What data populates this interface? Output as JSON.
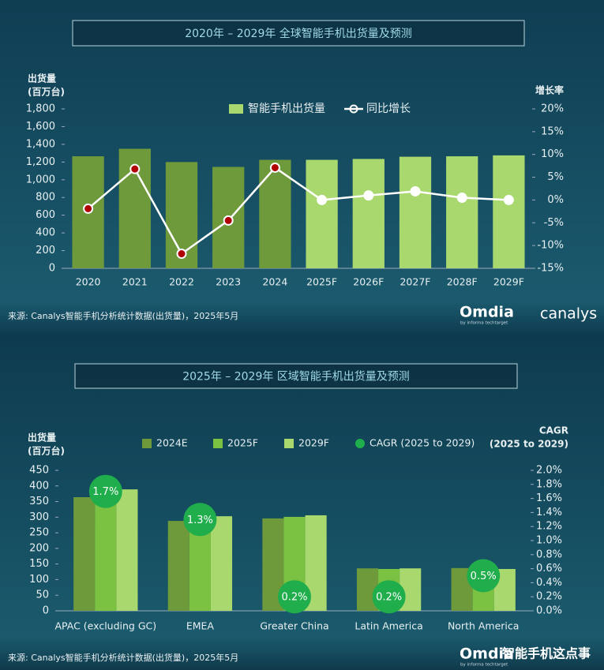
{
  "chart_data": [
    {
      "type": "bar",
      "title": "2020年 – 2029年 全球智能手机出货量及预测",
      "y_label": [
        "出货量",
        "(百万台)"
      ],
      "y2_label": "增长率",
      "categories": [
        "2020",
        "2021",
        "2022",
        "2023",
        "2024",
        "2025F",
        "2026F",
        "2027F",
        "2028F",
        "2029F"
      ],
      "series": [
        {
          "name": "智能手机出货量",
          "type": "bar",
          "color": "#a8d86e",
          "colors": [
            "#6e9a3c",
            "#6e9a3c",
            "#6e9a3c",
            "#6e9a3c",
            "#6e9a3c",
            "#a8d86e",
            "#a8d86e",
            "#a8d86e",
            "#a8d86e",
            "#a8d86e"
          ],
          "values": [
            1265,
            1350,
            1200,
            1145,
            1225,
            1225,
            1235,
            1260,
            1265,
            1275
          ]
        },
        {
          "name": "同比增长",
          "type": "line",
          "axis": "y2",
          "color": "#ffffff",
          "marker_colors": [
            "#b00000",
            "#b00000",
            "#b00000",
            "#b00000",
            "#b00000",
            "#ffffff",
            "#ffffff",
            "#ffffff",
            "#ffffff",
            "#ffffff"
          ],
          "values": [
            -1.9,
            6.8,
            -11.8,
            -4.5,
            7.1,
            0,
            1.0,
            1.9,
            0.5,
            0
          ]
        }
      ],
      "ylim": [
        0,
        1800
      ],
      "yticks": [
        0,
        200,
        400,
        600,
        800,
        {
          "value": 1000,
          "label": "1,000"
        },
        {
          "value": 1200,
          "label": "1,200"
        },
        {
          "value": 1400,
          "label": "1,400"
        },
        {
          "value": 1600,
          "label": "1,600"
        },
        {
          "value": 1800,
          "label": "1,800"
        }
      ],
      "y2lim": [
        -15,
        20
      ],
      "y2ticks": [
        {
          "value": -15,
          "label": "-15%"
        },
        {
          "value": -10,
          "label": "-10%"
        },
        {
          "value": -5,
          "label": "-5%"
        },
        {
          "value": 0,
          "label": "0%"
        },
        {
          "value": 5,
          "label": "5%"
        },
        {
          "value": 10,
          "label": "10%"
        },
        {
          "value": 15,
          "label": "15%"
        },
        {
          "value": 20,
          "label": "20%"
        }
      ],
      "source": "来源: Canalys智能手机分析统计数据(出货量)，2025年5月",
      "logos": [
        "Omdia",
        "by informa techtarget",
        "canalys"
      ]
    },
    {
      "type": "bar",
      "title": "2025年 – 2029年 区域智能手机出货量及预测",
      "y_label": [
        "出货量",
        "(百万台)"
      ],
      "y2_label": [
        "CAGR",
        "(2025 to 2029)"
      ],
      "categories": [
        "APAC (excluding GC)",
        "EMEA",
        "Greater China",
        "Latin America",
        "North America"
      ],
      "series": [
        {
          "name": "2024E",
          "type": "bar",
          "color": "#6e9a3c",
          "values": [
            364,
            288,
            296,
            136,
            137
          ]
        },
        {
          "name": "2025F",
          "type": "bar",
          "color": "#7cc242",
          "values": [
            374,
            295,
            301,
            134,
            135
          ]
        },
        {
          "name": "2029F",
          "type": "bar",
          "color": "#a8d86e",
          "values": [
            389,
            303,
            306,
            136,
            134
          ]
        },
        {
          "name": "CAGR (2025 to 2029)",
          "type": "scatter",
          "axis": "y2",
          "color": "#1fae4b",
          "values": [
            1.7,
            1.3,
            0.2,
            0.2,
            0.5
          ],
          "value_labels": [
            "1.7%",
            "1.3%",
            "0.2%",
            "0.2%",
            "0.5%"
          ]
        }
      ],
      "ylim": [
        0,
        450
      ],
      "yticks": [
        0,
        50,
        100,
        150,
        200,
        250,
        300,
        350,
        400,
        450
      ],
      "y2lim": [
        0,
        2.0
      ],
      "y2ticks": [
        {
          "value": 0,
          "label": "0.0%"
        },
        {
          "value": 0.2,
          "label": "0.2%"
        },
        {
          "value": 0.4,
          "label": "0.4%"
        },
        {
          "value": 0.6,
          "label": "0.6%"
        },
        {
          "value": 0.8,
          "label": "0.8%"
        },
        {
          "value": 1.0,
          "label": "1.0%"
        },
        {
          "value": 1.2,
          "label": "1.2%"
        },
        {
          "value": 1.4,
          "label": "1.4%"
        },
        {
          "value": 1.6,
          "label": "1.6%"
        },
        {
          "value": 1.8,
          "label": "1.8%"
        },
        {
          "value": 2.0,
          "label": "2.0%"
        }
      ],
      "source": "来源: Canalys智能手机分析统计数据(出货量)，2025年5月",
      "logos": [
        "Omdia",
        "by informa techtarget",
        "智能手机这点事"
      ]
    }
  ]
}
